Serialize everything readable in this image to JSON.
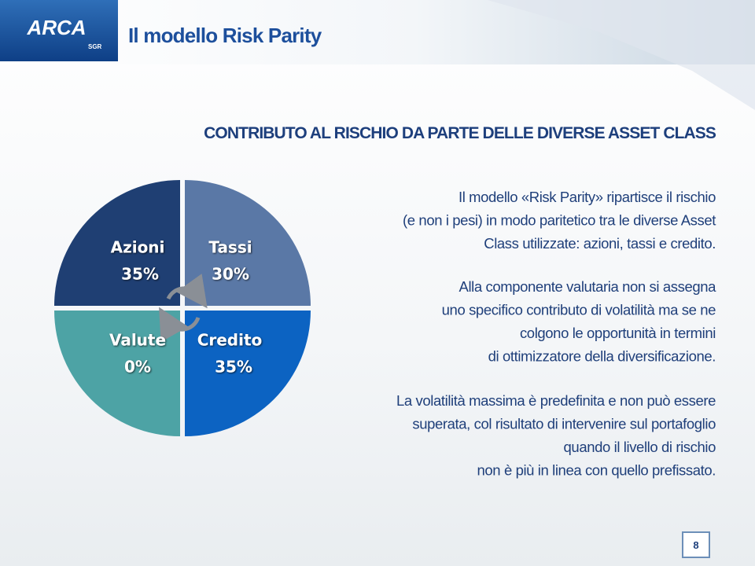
{
  "header": {
    "logo": "ARCA",
    "logo_sub": "SGR",
    "title": "Il modello Risk Parity"
  },
  "subtitle": "CONTRIBUTO AL RISCHIO DA PARTE DELLE DIVERSE ASSET CLASS",
  "quadrants": [
    {
      "label": "Azioni",
      "value": "35%"
    },
    {
      "label": "Tassi",
      "value": "30%"
    },
    {
      "label": "Valute",
      "value": "0%"
    },
    {
      "label": "Credito",
      "value": "35%"
    }
  ],
  "paragraphs": [
    [
      "Il modello «Risk Parity» ripartisce il rischio",
      "(e non i pesi) in modo paritetico tra le diverse Asset",
      "Class utilizzate: azioni, tassi e credito."
    ],
    [
      "Alla componente valutaria non si assegna",
      "uno specifico contributo di volatilità ma se ne",
      "colgono le opportunità in termini",
      "di ottimizzatore della diversificazione."
    ],
    [
      "La volatilità massima è predefinita e non può essere",
      "superata, col risultato di intervenire sul portafoglio",
      "quando il livello di rischio",
      "non è più in linea con quello prefissato."
    ]
  ],
  "page_number": "8"
}
